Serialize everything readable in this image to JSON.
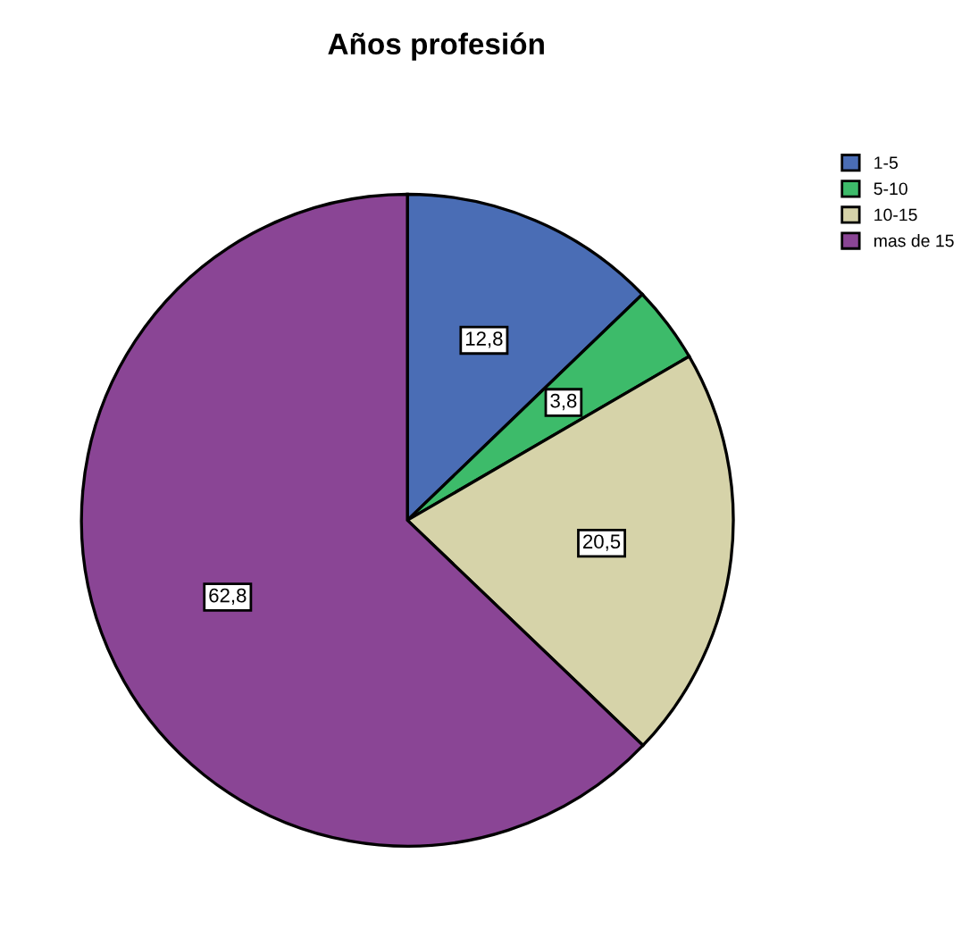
{
  "chart_data": {
    "type": "pie",
    "title": "Años profesión",
    "categories": [
      "1-5",
      "5-10",
      "10-15",
      "mas de 15"
    ],
    "values": [
      12.8,
      3.8,
      20.5,
      62.8
    ],
    "value_labels": [
      "12,8",
      "3,8",
      "20,5",
      "62,8"
    ],
    "colors": [
      "#4a6db5",
      "#3dbb6a",
      "#d6d3a9",
      "#8a4595"
    ],
    "legend": "top right"
  }
}
